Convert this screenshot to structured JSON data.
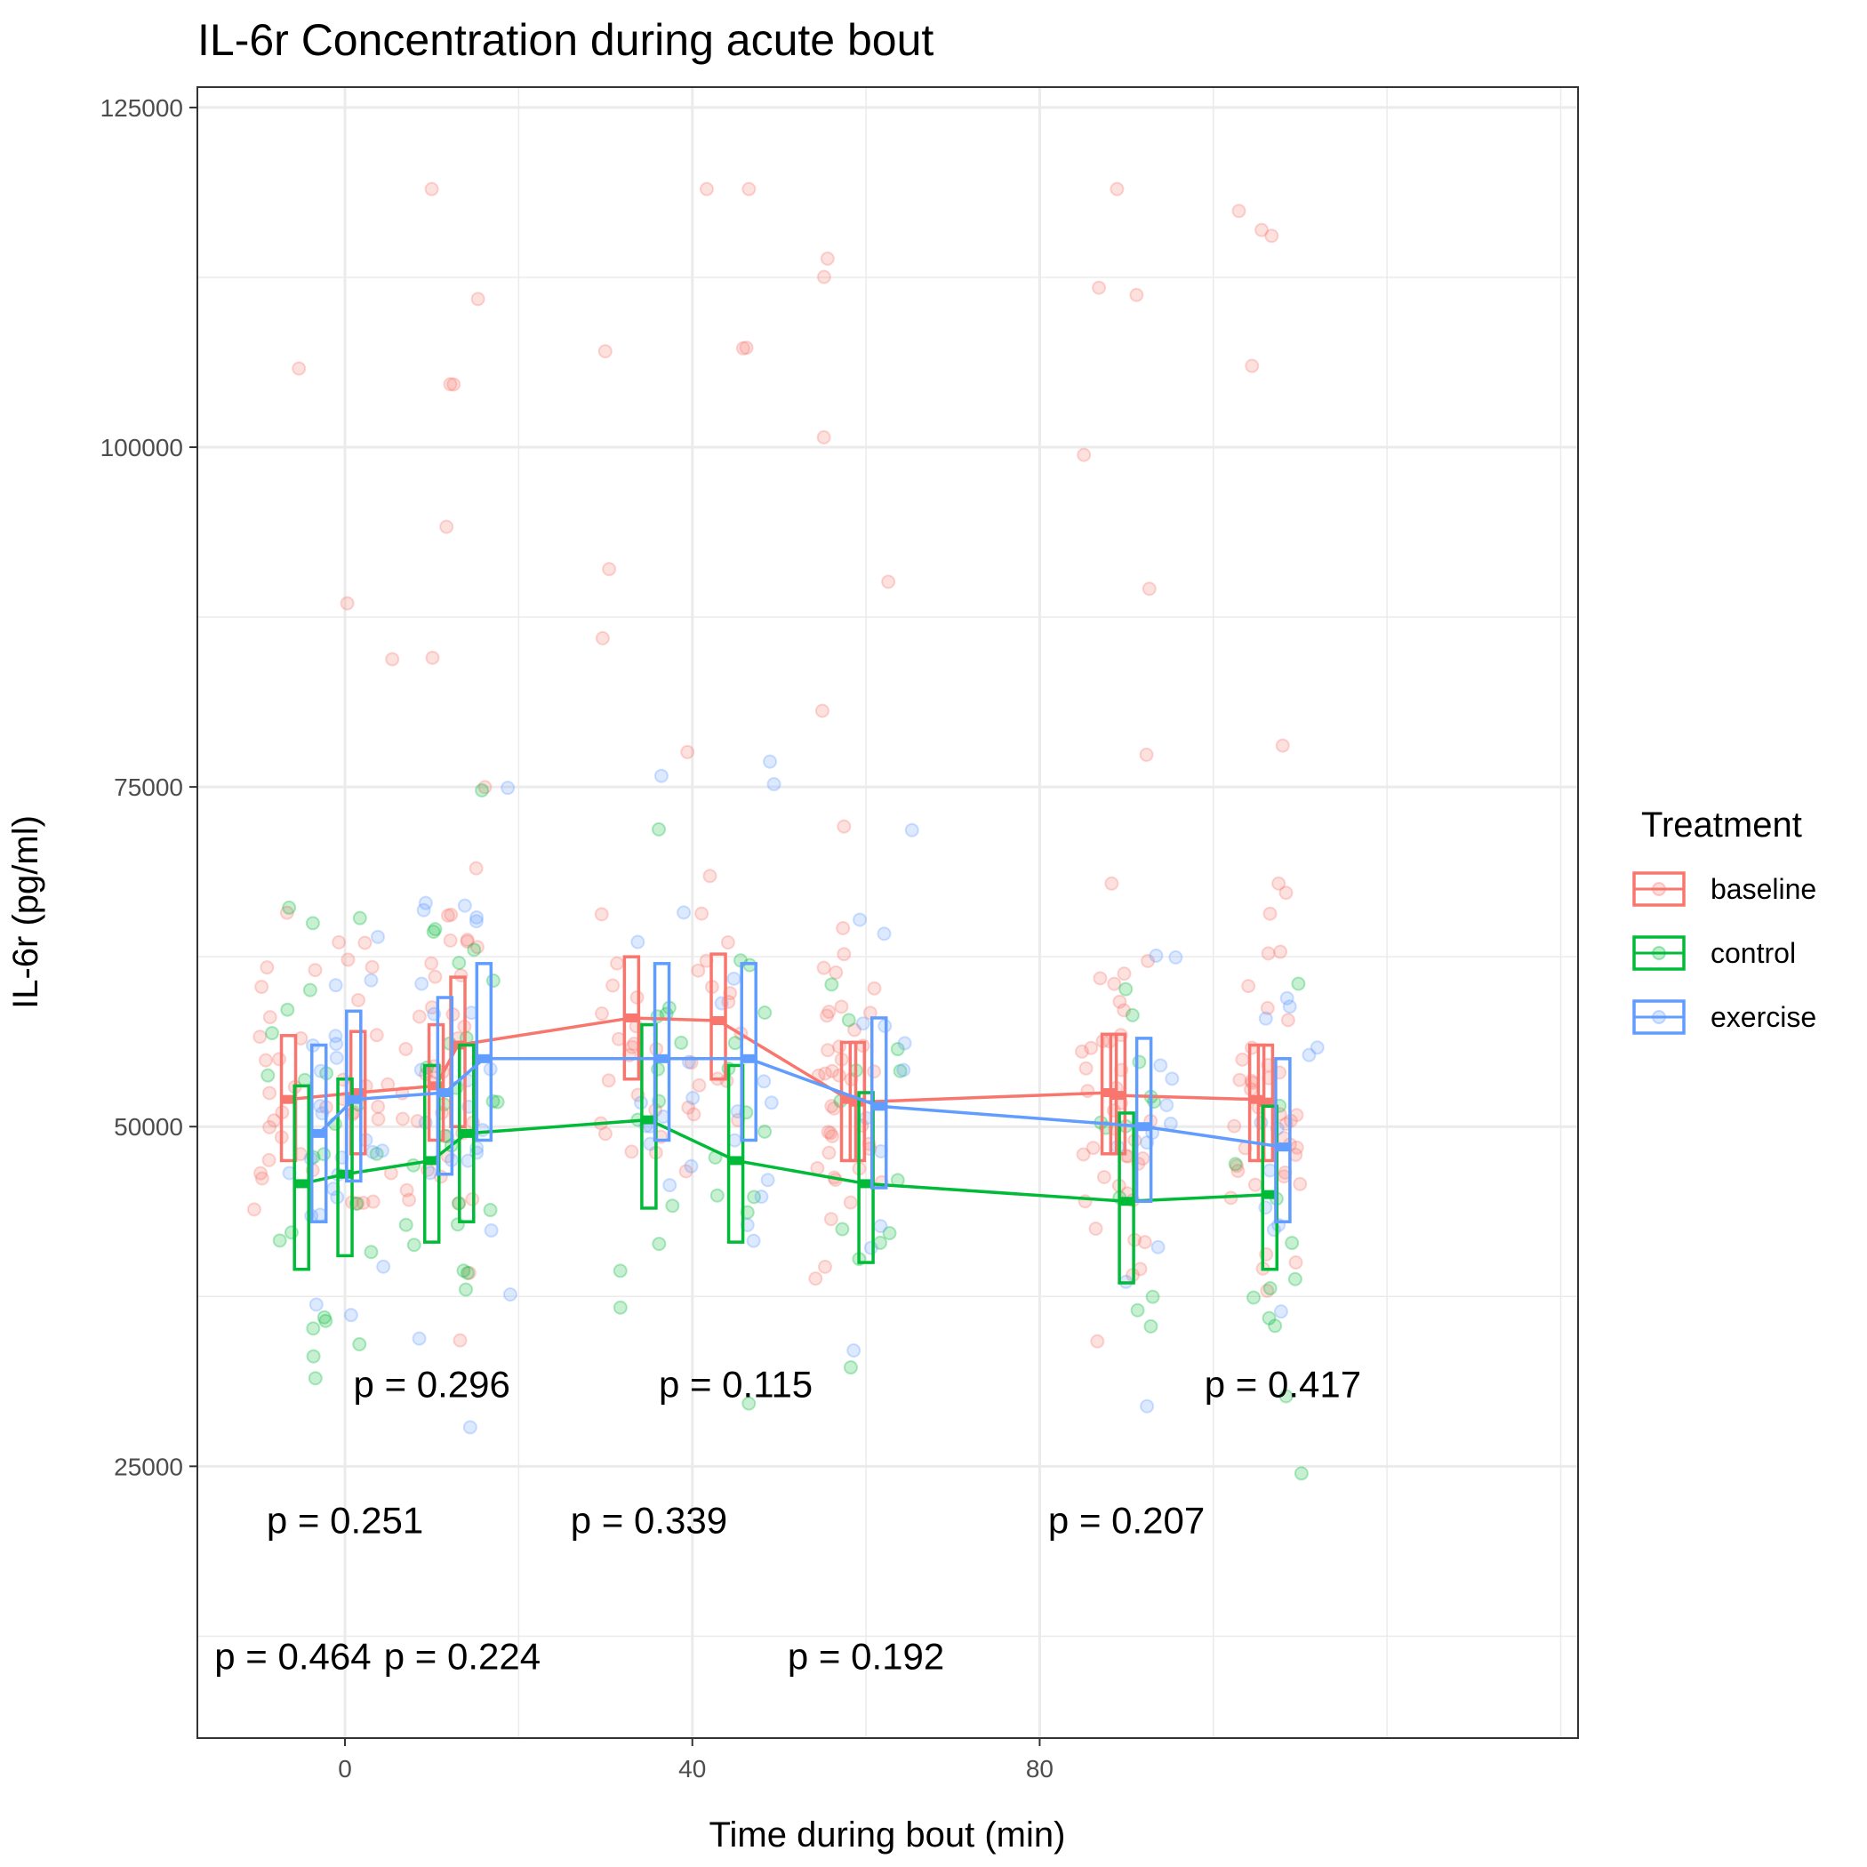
{
  "chart_data": {
    "type": "line",
    "title": "IL-6r Concentration during acute bout",
    "xlabel": "Time during bout (min)",
    "ylabel": "IL-6r (pg/ml)",
    "xlim": [
      -17,
      142
    ],
    "ylim": [
      5000,
      126500
    ],
    "x_ticks": [
      0,
      40,
      80
    ],
    "x_tick_labels": [
      "0",
      "40",
      "80"
    ],
    "y_ticks": [
      25000,
      50000,
      75000,
      100000,
      125000
    ],
    "y_tick_labels": [
      "25000",
      "50000",
      "75000",
      "100000",
      "125000"
    ],
    "grid": true,
    "legend": {
      "title": "Treatment",
      "position": "right"
    },
    "colors": {
      "baseline": "#F8766D",
      "control": "#00BA38",
      "exercise": "#619CFF"
    },
    "series": [
      {
        "name": "baseline",
        "x": [
          -6.5,
          1.5,
          10.5,
          13,
          33,
          43,
          58,
          59,
          88,
          89,
          105,
          106
        ],
        "mean": [
          52000,
          52500,
          53000,
          56000,
          58000,
          57800,
          52000,
          51800,
          52500,
          52300,
          52000,
          51800
        ],
        "box_low": [
          47500,
          48000,
          49000,
          50000,
          53500,
          53500,
          47500,
          47500,
          48000,
          48000,
          47500,
          47500
        ],
        "box_high": [
          56700,
          57000,
          57500,
          61000,
          62500,
          62700,
          56200,
          56200,
          56800,
          56800,
          56000,
          56000
        ]
      },
      {
        "name": "control",
        "x": [
          -5,
          0,
          10,
          14,
          35,
          45,
          60,
          90,
          106.5
        ],
        "mean": [
          45800,
          46500,
          47500,
          49500,
          50500,
          47500,
          45800,
          44500,
          45000
        ],
        "box_low": [
          39500,
          40500,
          41500,
          43000,
          44000,
          41500,
          40000,
          38500,
          39500
        ],
        "box_high": [
          53000,
          53500,
          54500,
          56000,
          57500,
          54500,
          52500,
          51000,
          51500
        ]
      },
      {
        "name": "exercise",
        "x": [
          -3,
          1,
          11.5,
          16,
          36.5,
          46.5,
          61.5,
          92,
          108
        ],
        "mean": [
          49500,
          52000,
          52500,
          55000,
          55000,
          55000,
          51500,
          50000,
          48500
        ],
        "box_low": [
          43000,
          46000,
          46500,
          49000,
          49000,
          49000,
          45500,
          44500,
          43000
        ],
        "box_high": [
          56000,
          58500,
          59500,
          62000,
          62000,
          62000,
          58000,
          56500,
          55000
        ]
      }
    ],
    "annotations": [
      {
        "label": "p = 0.464",
        "x": -6,
        "y": 11000
      },
      {
        "label": "p = 0.251",
        "x": 0,
        "y": 21000
      },
      {
        "label": "p = 0.296",
        "x": 10,
        "y": 31000
      },
      {
        "label": "p = 0.224",
        "x": 13.5,
        "y": 11000
      },
      {
        "label": "p = 0.339",
        "x": 35,
        "y": 21000
      },
      {
        "label": "p = 0.115",
        "x": 45,
        "y": 31000
      },
      {
        "label": "p = 0.192",
        "x": 60,
        "y": 11000
      },
      {
        "label": "p = 0.207",
        "x": 90,
        "y": 21000
      },
      {
        "label": "p = 0.417",
        "x": 108,
        "y": 31000
      }
    ]
  }
}
